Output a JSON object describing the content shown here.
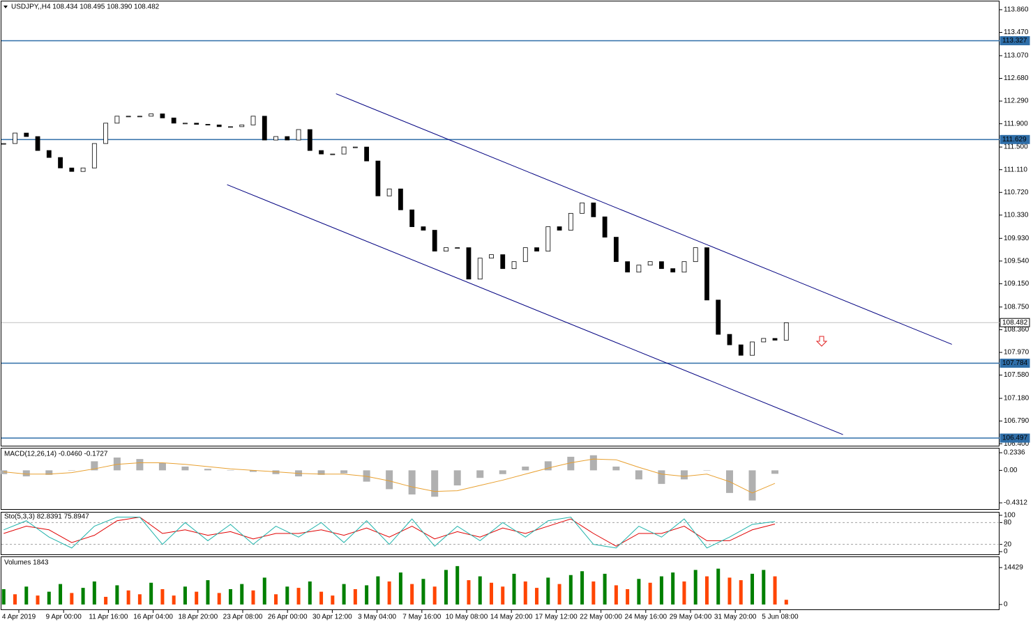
{
  "chart_data": [
    {
      "type": "candlestick",
      "title": "USDJPY,,H4  108.434 108.495 108.390 108.482",
      "categories": [
        "4 Apr 2019",
        "9 Apr 00:00",
        "11 Apr 16:00",
        "16 Apr 04:00",
        "18 Apr 20:00",
        "23 Apr 08:00",
        "26 Apr 00:00",
        "30 Apr 12:00",
        "3 May 04:00",
        "7 May 16:00",
        "10 May 08:00",
        "14 May 20:00",
        "17 May 12:00",
        "22 May 00:00",
        "24 May 16:00",
        "29 May 04:00",
        "31 May 20:00",
        "5 Jun 08:00"
      ],
      "close": [
        111.56,
        111.74,
        111.68,
        111.44,
        111.32,
        111.14,
        111.08,
        111.14,
        111.56,
        111.91,
        112.03,
        112.03,
        112.03,
        112.07,
        112.0,
        111.91,
        111.91,
        111.89,
        111.88,
        111.85,
        111.85,
        111.88,
        112.03,
        111.62,
        111.68,
        111.62,
        111.8,
        111.44,
        111.38,
        111.38,
        111.5,
        111.5,
        111.26,
        110.66,
        110.78,
        110.42,
        110.13,
        110.07,
        109.71,
        109.77,
        109.77,
        109.23,
        109.59,
        109.65,
        109.41,
        109.53,
        109.77,
        109.71,
        110.13,
        110.07,
        110.36,
        110.54,
        110.3,
        109.95,
        109.53,
        109.35,
        109.47,
        109.53,
        109.41,
        109.35,
        109.53,
        109.77,
        108.87,
        108.28,
        108.1,
        107.92,
        108.15,
        108.21,
        108.18,
        108.48
      ],
      "up_color": "#ffffff",
      "down_color": "#000000",
      "xlim": [
        -0.2,
        87.8
      ],
      "ylim": [
        106.366,
        114.003
      ],
      "yticks": [
        {
          "value": 113.86,
          "label": "113.860"
        },
        {
          "value": 113.47,
          "label": "113.470"
        },
        {
          "value": 113.07,
          "label": "113.070"
        },
        {
          "value": 112.68,
          "label": "112.680"
        },
        {
          "value": 112.29,
          "label": "112.290"
        },
        {
          "value": 111.9,
          "label": "111.900"
        },
        {
          "value": 111.5,
          "label": "111.500"
        },
        {
          "value": 111.11,
          "label": "111.110"
        },
        {
          "value": 110.72,
          "label": "110.720"
        },
        {
          "value": 110.33,
          "label": "110.330"
        },
        {
          "value": 109.93,
          "label": "109.930"
        },
        {
          "value": 109.54,
          "label": "109.540"
        },
        {
          "value": 109.15,
          "label": "109.150"
        },
        {
          "value": 108.75,
          "label": "108.750"
        },
        {
          "value": 108.36,
          "label": "108.360"
        },
        {
          "value": 107.97,
          "label": "107.970"
        },
        {
          "value": 107.58,
          "label": "107.580"
        },
        {
          "value": 107.18,
          "label": "107.180"
        },
        {
          "value": 106.79,
          "label": "106.790"
        },
        {
          "value": 106.4,
          "label": "106.400"
        }
      ],
      "levels": [
        {
          "value": 113.327,
          "color": "#2f6ea8"
        },
        {
          "value": 111.629,
          "color": "#2f6ea8"
        },
        {
          "value": 108.482,
          "color": "#c0c0c0"
        },
        {
          "value": 107.784,
          "color": "#2f6ea8"
        },
        {
          "value": 106.497,
          "color": "#2f6ea8"
        }
      ],
      "channels": [
        {
          "x": [
            29.3,
            83.6
          ],
          "y": [
            112.416,
            108.108
          ],
          "color": "#000080"
        },
        {
          "x": [
            19.7,
            74.0
          ],
          "y": [
            110.853,
            106.557
          ],
          "color": "#000080"
        }
      ]
    },
    {
      "type": "macd",
      "title": "MACD(12,26,14) -0.0460 -0.1727",
      "values": [
        -0.05,
        -0.08,
        -0.06,
        0.0,
        0.12,
        0.17,
        0.15,
        0.1,
        0.05,
        0.02,
        0.0,
        -0.02,
        -0.05,
        -0.08,
        -0.06,
        -0.04,
        -0.15,
        -0.25,
        -0.32,
        -0.35,
        -0.2,
        -0.1,
        -0.05,
        0.05,
        0.12,
        0.18,
        0.2,
        0.05,
        -0.12,
        -0.18,
        -0.12,
        0.0,
        -0.3,
        -0.4,
        -0.046
      ],
      "signal": [
        -0.02,
        -0.05,
        -0.05,
        -0.03,
        0.02,
        0.08,
        0.1,
        0.1,
        0.08,
        0.05,
        0.02,
        0.0,
        -0.02,
        -0.04,
        -0.05,
        -0.05,
        -0.08,
        -0.14,
        -0.22,
        -0.28,
        -0.27,
        -0.2,
        -0.13,
        -0.05,
        0.03,
        0.1,
        0.15,
        0.14,
        0.04,
        -0.05,
        -0.08,
        -0.05,
        -0.15,
        -0.3,
        -0.1727
      ],
      "color": "#b0b0b0",
      "signal_color": "#e8a030",
      "ylim": [
        -0.514,
        0.2897
      ],
      "yticks": [
        0.2336,
        {
          "value": 0,
          "label": "0.00"
        },
        -0.4312
      ]
    },
    {
      "type": "stochastic",
      "title": "Sto(5,3,3) 82.8391 75.8947",
      "main": [
        60,
        85,
        40,
        10,
        70,
        95,
        95,
        20,
        80,
        30,
        75,
        20,
        70,
        40,
        80,
        25,
        85,
        20,
        90,
        15,
        70,
        30,
        80,
        40,
        85,
        95,
        20,
        10,
        70,
        40,
        90,
        10,
        40,
        75,
        82.8391
      ],
      "signal": [
        50,
        70,
        60,
        25,
        45,
        85,
        95,
        50,
        60,
        45,
        55,
        35,
        50,
        50,
        60,
        45,
        65,
        40,
        70,
        35,
        55,
        40,
        65,
        50,
        70,
        90,
        50,
        15,
        50,
        50,
        70,
        30,
        30,
        60,
        75.8947
      ],
      "main_color": "#20b2aa",
      "signal_color": "#e00000",
      "ylim": [
        -7.5,
        107.5
      ],
      "yticks": [
        100,
        80,
        20,
        0
      ],
      "levels": [
        80,
        20
      ]
    },
    {
      "type": "volume",
      "title": "Volumes 1843",
      "values": [
        6000,
        4000,
        7000,
        3500,
        5000,
        8000,
        4500,
        6500,
        9000,
        3000,
        7500,
        5500,
        4000,
        8500,
        6000,
        3500,
        7000,
        5000,
        9500,
        4500,
        6000,
        8000,
        5500,
        10500,
        4000,
        7000,
        6500,
        9000,
        5000,
        3500,
        8000,
        6000,
        7500,
        11000,
        9000,
        12500,
        8000,
        10000,
        7000,
        13500,
        15000,
        9500,
        11000,
        8500,
        7000,
        12000,
        9000,
        6500,
        10500,
        8000,
        11500,
        13000,
        9000,
        12000,
        7500,
        6000,
        10000,
        8500,
        11000,
        12500,
        9000,
        13500,
        11000,
        14000,
        10500,
        9500,
        12000,
        13500,
        11000,
        1843
      ],
      "up_color": "#008000",
      "down_color": "#ff4500",
      "ylim": [
        -1900,
        18500
      ],
      "yticks": [
        14429,
        0
      ]
    }
  ]
}
